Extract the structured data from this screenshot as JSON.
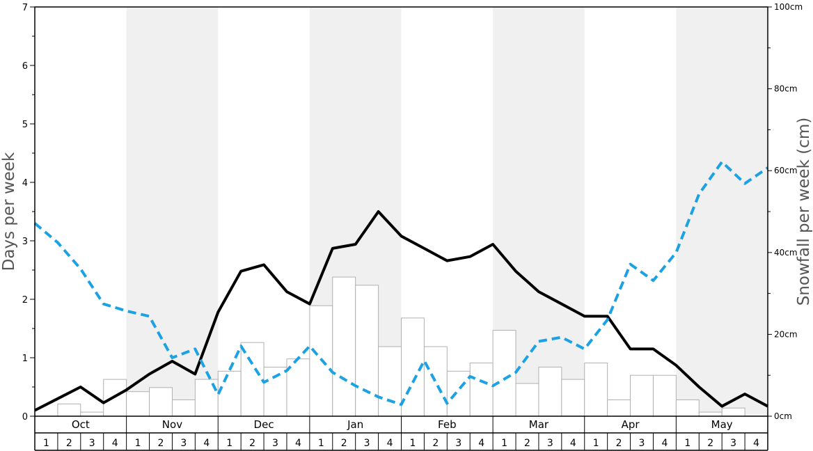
{
  "chart_data": {
    "type": "bar+line",
    "title": "",
    "left_axis": {
      "label": "Days per week",
      "ylim": [
        0,
        7
      ],
      "ticks": [
        0,
        1,
        2,
        3,
        4,
        5,
        6,
        7
      ]
    },
    "right_axis": {
      "label": "Snowfall per week (cm)",
      "ylim": [
        0,
        100
      ],
      "ticks": [
        "0cm",
        "20cm",
        "40cm",
        "60cm",
        "80cm",
        "100cm"
      ]
    },
    "months": [
      "Oct",
      "Nov",
      "Dec",
      "Jan",
      "Feb",
      "Mar",
      "Apr",
      "May"
    ],
    "week_labels": [
      "1",
      "2",
      "3",
      "4"
    ],
    "series": [
      {
        "type": "bar",
        "axis": "right",
        "color": "#ffffff",
        "values": [
          0,
          3,
          1,
          9,
          6,
          7,
          4,
          9,
          11,
          18,
          12,
          14,
          27,
          34,
          32,
          17,
          24,
          17,
          11,
          13,
          21,
          8,
          12,
          9,
          13,
          4,
          10,
          10,
          4,
          1,
          2,
          0
        ]
      },
      {
        "type": "line",
        "axis": "left",
        "style": "solid",
        "color": "#000000",
        "values": [
          0.1,
          0.3,
          0.5,
          0.23,
          0.45,
          0.72,
          0.94,
          0.72,
          1.78,
          2.48,
          2.59,
          2.13,
          1.92,
          2.87,
          2.94,
          3.5,
          3.08,
          2.87,
          2.66,
          2.73,
          2.94,
          2.48,
          2.13,
          1.92,
          1.71,
          1.71,
          1.15,
          1.15,
          0.87,
          0.5,
          0.17,
          0.38,
          0.17
        ]
      },
      {
        "type": "line",
        "axis": "left",
        "style": "dashed",
        "color": "#1ca1e2",
        "values": [
          3.3,
          2.97,
          2.52,
          1.92,
          1.8,
          1.71,
          1.0,
          1.15,
          0.37,
          1.2,
          0.58,
          0.78,
          1.2,
          0.75,
          0.52,
          0.33,
          0.2,
          0.95,
          0.22,
          0.68,
          0.52,
          0.75,
          1.28,
          1.35,
          1.15,
          1.65,
          2.6,
          2.32,
          2.8,
          3.8,
          4.35,
          3.98,
          4.25
        ]
      }
    ],
    "colors": {
      "band": "#f0f0f0",
      "bar_stroke": "#b0b0b0",
      "solid_line": "#000000",
      "dashed_line": "#1ca1e2"
    }
  }
}
